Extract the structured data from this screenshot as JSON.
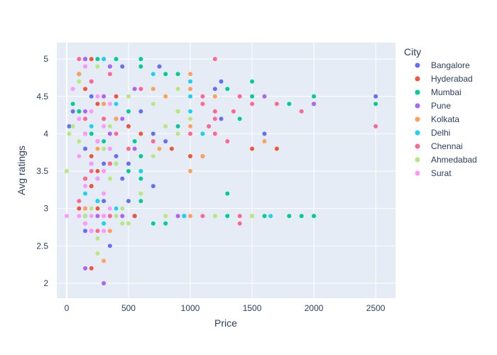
{
  "chart_data": {
    "type": "scatter",
    "title": "",
    "xlabel": "Price",
    "ylabel": "Avg ratings",
    "xlim": [
      -80,
      2660
    ],
    "ylim": [
      1.8,
      5.22
    ],
    "xticks": [
      0,
      500,
      1000,
      1500,
      2000,
      2500
    ],
    "yticks": [
      2,
      2.5,
      3,
      3.5,
      4,
      4.5,
      5
    ],
    "grid": true,
    "legend": {
      "title": "City",
      "placement": "right"
    },
    "series": [
      {
        "name": "Bangalore",
        "color": "#636efa",
        "points": [
          [
            150,
            5
          ],
          [
            300,
            5
          ],
          [
            450,
            4.9
          ],
          [
            750,
            4.9
          ],
          [
            100,
            4.8
          ],
          [
            1250,
            4.7
          ],
          [
            1200,
            4.6
          ],
          [
            200,
            4.5
          ],
          [
            2500,
            4.5
          ],
          [
            300,
            4.4
          ],
          [
            2000,
            4.4
          ],
          [
            50,
            4.3
          ],
          [
            600,
            4.3
          ],
          [
            1250,
            4.2
          ],
          [
            400,
            4.2
          ],
          [
            20,
            4.1
          ],
          [
            700,
            4
          ],
          [
            1600,
            4
          ],
          [
            250,
            3.9
          ],
          [
            800,
            3.9
          ],
          [
            150,
            3.8
          ],
          [
            400,
            3.7
          ],
          [
            300,
            3.6
          ],
          [
            500,
            3.6
          ],
          [
            450,
            3.4
          ],
          [
            200,
            3.3
          ],
          [
            700,
            3.3
          ],
          [
            300,
            3.1
          ],
          [
            500,
            3.1
          ],
          [
            150,
            2.9
          ],
          [
            350,
            2.9
          ],
          [
            550,
            2.9
          ],
          [
            950,
            2.9
          ],
          [
            150,
            2.7
          ],
          [
            350,
            2.5
          ]
        ]
      },
      {
        "name": "Hyderabad",
        "color": "#ef553b",
        "points": [
          [
            200,
            5
          ],
          [
            100,
            4.8
          ],
          [
            150,
            4.6
          ],
          [
            400,
            4.5
          ],
          [
            250,
            4.4
          ],
          [
            100,
            4.3
          ],
          [
            300,
            4.2
          ],
          [
            500,
            4.1
          ],
          [
            600,
            4
          ],
          [
            150,
            4
          ],
          [
            250,
            3.9
          ],
          [
            850,
            3.8
          ],
          [
            1500,
            3.8
          ],
          [
            1700,
            3.8
          ],
          [
            200,
            3.7
          ],
          [
            1000,
            3.7
          ],
          [
            1100,
            3.7
          ],
          [
            350,
            3.6
          ],
          [
            250,
            3.5
          ],
          [
            150,
            3.4
          ],
          [
            200,
            3.3
          ],
          [
            100,
            3
          ],
          [
            250,
            3
          ],
          [
            300,
            2.9
          ],
          [
            550,
            2.9
          ],
          [
            200,
            2.7
          ],
          [
            200,
            2.2
          ]
        ]
      },
      {
        "name": "Mumbai",
        "color": "#00cc96",
        "points": [
          [
            250,
            5
          ],
          [
            400,
            5
          ],
          [
            600,
            5
          ],
          [
            350,
            4.9
          ],
          [
            600,
            4.9
          ],
          [
            800,
            4.8
          ],
          [
            900,
            4.8
          ],
          [
            1500,
            4.7
          ],
          [
            1300,
            4.6
          ],
          [
            1500,
            4.5
          ],
          [
            2000,
            4.5
          ],
          [
            1800,
            4.4
          ],
          [
            2500,
            4.4
          ],
          [
            50,
            4.4
          ],
          [
            100,
            4.3
          ],
          [
            500,
            4.3
          ],
          [
            1400,
            4.2
          ],
          [
            900,
            4.1
          ],
          [
            1100,
            4
          ],
          [
            200,
            4
          ],
          [
            550,
            3.9
          ],
          [
            300,
            3.9
          ],
          [
            600,
            3.7
          ],
          [
            400,
            3.6
          ],
          [
            600,
            3.5
          ],
          [
            500,
            3.5
          ],
          [
            250,
            3.4
          ],
          [
            600,
            3.4
          ],
          [
            1300,
            3.2
          ],
          [
            250,
            3.1
          ],
          [
            600,
            3.1
          ],
          [
            1300,
            2.9
          ],
          [
            1600,
            2.9
          ],
          [
            1800,
            2.9
          ],
          [
            1900,
            2.9
          ],
          [
            2000,
            2.9
          ],
          [
            700,
            2.8
          ],
          [
            800,
            2.8
          ]
        ]
      },
      {
        "name": "Pune",
        "color": "#ab63fa",
        "points": [
          [
            150,
            5
          ],
          [
            350,
            4.9
          ],
          [
            200,
            4.7
          ],
          [
            550,
            4.6
          ],
          [
            1600,
            4.5
          ],
          [
            300,
            4.5
          ],
          [
            2000,
            4.4
          ],
          [
            150,
            4.3
          ],
          [
            450,
            4.2
          ],
          [
            1150,
            4.1
          ],
          [
            350,
            4
          ],
          [
            250,
            3.9
          ],
          [
            550,
            3.8
          ],
          [
            200,
            3.6
          ],
          [
            300,
            3.5
          ],
          [
            150,
            3
          ],
          [
            250,
            2.9
          ],
          [
            450,
            2.9
          ],
          [
            900,
            2.9
          ],
          [
            150,
            2.2
          ],
          [
            300,
            2
          ]
        ]
      },
      {
        "name": "Kolkata",
        "color": "#ffa15a",
        "points": [
          [
            100,
            4.8
          ],
          [
            1000,
            4.8
          ],
          [
            700,
            4.6
          ],
          [
            1000,
            4.6
          ],
          [
            800,
            4.5
          ],
          [
            1200,
            4.5
          ],
          [
            300,
            4.4
          ],
          [
            900,
            4.3
          ],
          [
            400,
            4.2
          ],
          [
            1000,
            4.1
          ],
          [
            1600,
            3.9
          ],
          [
            250,
            3.8
          ],
          [
            750,
            3.8
          ],
          [
            1100,
            3.7
          ],
          [
            1000,
            3.5
          ],
          [
            150,
            3
          ],
          [
            1000,
            2.9
          ],
          [
            150,
            2.8
          ],
          [
            350,
            2.7
          ],
          [
            300,
            2.3
          ]
        ]
      },
      {
        "name": "Delhi",
        "color": "#19d3f3",
        "points": [
          [
            300,
            5
          ],
          [
            700,
            4.8
          ],
          [
            1000,
            4.7
          ],
          [
            1000,
            4.5
          ],
          [
            400,
            4.4
          ],
          [
            1000,
            4.3
          ],
          [
            200,
            4.1
          ],
          [
            1100,
            4
          ],
          [
            350,
            3.8
          ],
          [
            200,
            3.6
          ],
          [
            600,
            3.5
          ],
          [
            150,
            3.2
          ],
          [
            250,
            3.1
          ],
          [
            400,
            3
          ],
          [
            950,
            2.9
          ],
          [
            1650,
            2.9
          ],
          [
            300,
            2.8
          ]
        ]
      },
      {
        "name": "Chennai",
        "color": "#ff6692",
        "points": [
          [
            100,
            5
          ],
          [
            1200,
            5
          ],
          [
            150,
            4.9
          ],
          [
            350,
            4.8
          ],
          [
            200,
            4.7
          ],
          [
            600,
            4.6
          ],
          [
            1100,
            4.5
          ],
          [
            1400,
            4.5
          ],
          [
            1100,
            4.4
          ],
          [
            1500,
            4.4
          ],
          [
            1700,
            4.4
          ],
          [
            1900,
            4.3
          ],
          [
            1350,
            4.3
          ],
          [
            1200,
            4.3
          ],
          [
            1200,
            4.2
          ],
          [
            300,
            4.2
          ],
          [
            150,
            4.2
          ],
          [
            2500,
            4.1
          ],
          [
            1150,
            4.1
          ],
          [
            1000,
            4
          ],
          [
            1200,
            4
          ],
          [
            400,
            4
          ],
          [
            1300,
            3.9
          ],
          [
            700,
            3.9
          ],
          [
            500,
            3.8
          ],
          [
            350,
            3.6
          ],
          [
            150,
            3.4
          ],
          [
            200,
            3.5
          ],
          [
            100,
            3.1
          ],
          [
            350,
            2.9
          ],
          [
            1100,
            2.9
          ],
          [
            1400,
            2.9
          ],
          [
            1500,
            2.9
          ],
          [
            1400,
            2.8
          ],
          [
            250,
            2.7
          ]
        ]
      },
      {
        "name": "Ahmedabad",
        "color": "#b6e880",
        "points": [
          [
            250,
            4.9
          ],
          [
            100,
            4.7
          ],
          [
            900,
            4.6
          ],
          [
            500,
            4.5
          ],
          [
            700,
            4.4
          ],
          [
            900,
            4.3
          ],
          [
            1000,
            4.2
          ],
          [
            800,
            4.1
          ],
          [
            350,
            4.1
          ],
          [
            900,
            4
          ],
          [
            50,
            4.1
          ],
          [
            20,
            4
          ],
          [
            100,
            3.9
          ],
          [
            300,
            3.8
          ],
          [
            700,
            3.7
          ],
          [
            400,
            3.6
          ],
          [
            0,
            3.5
          ],
          [
            350,
            3.4
          ],
          [
            600,
            3.2
          ],
          [
            200,
            3
          ],
          [
            450,
            3
          ],
          [
            150,
            2.9
          ],
          [
            400,
            2.9
          ],
          [
            800,
            2.9
          ],
          [
            1200,
            2.9
          ],
          [
            1500,
            2.9
          ],
          [
            500,
            2.8
          ],
          [
            450,
            2.8
          ],
          [
            250,
            2.6
          ],
          [
            250,
            2.4
          ]
        ]
      },
      {
        "name": "Surat",
        "color": "#ff97ff",
        "points": [
          [
            150,
            4.9
          ],
          [
            50,
            4.6
          ],
          [
            250,
            4.5
          ],
          [
            350,
            4.4
          ],
          [
            200,
            4.3
          ],
          [
            100,
            4.2
          ],
          [
            300,
            4.1
          ],
          [
            150,
            4
          ],
          [
            250,
            3.9
          ],
          [
            350,
            3.8
          ],
          [
            100,
            3.7
          ],
          [
            200,
            3.6
          ],
          [
            300,
            3.5
          ],
          [
            250,
            3.4
          ],
          [
            150,
            3.3
          ],
          [
            300,
            3.2
          ],
          [
            350,
            3
          ],
          [
            0,
            2.9
          ],
          [
            100,
            2.9
          ],
          [
            200,
            2.9
          ],
          [
            300,
            2.9
          ],
          [
            200,
            2.7
          ],
          [
            300,
            2.7
          ],
          [
            150,
            2.8
          ]
        ]
      }
    ]
  }
}
